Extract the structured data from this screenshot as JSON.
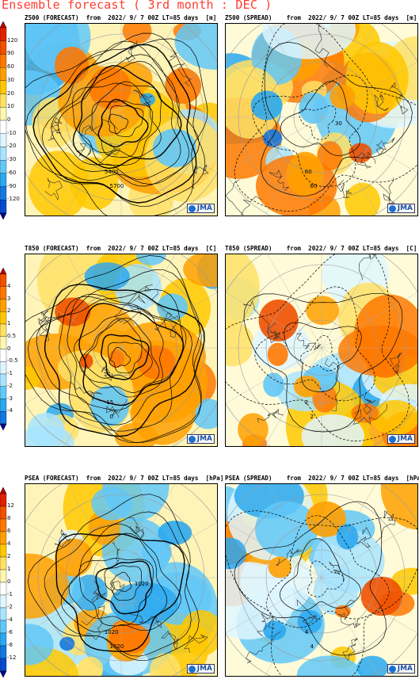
{
  "title": "Ensemble forecast ( 3rd month : DEC )",
  "colorbars": [
    {
      "ticks": [
        "120",
        "90",
        "60",
        "30",
        "20",
        "10",
        "0",
        "-10",
        "-20",
        "-30",
        "-60",
        "-90",
        "-120"
      ]
    },
    {
      "ticks": [
        "4",
        "3",
        "2",
        "1",
        "0.5",
        "0",
        "-0.5",
        "-1",
        "-2",
        "-3",
        "-4"
      ]
    },
    {
      "ticks": [
        "12",
        "8",
        "6",
        "4",
        "2",
        "1",
        "0",
        "-1",
        "-2",
        "-4",
        "-6",
        "-8",
        "-12"
      ]
    }
  ],
  "panels": [
    {
      "title": "Z500 (FORECAST)  from  2022/ 9/ 7 00Z LT=85 days  [m]",
      "labels": [
        "5400",
        "5700"
      ]
    },
    {
      "title": "Z500 (SPREAD)    from  2022/ 9/ 7 00Z LT=85 days  [m]",
      "labels": [
        "60",
        "60",
        "30"
      ]
    },
    {
      "title": "T850 (FORECAST)  from  2022/ 9/ 7 00Z LT=85 days  [C]",
      "labels": [
        "-15",
        "0"
      ]
    },
    {
      "title": "T850 (SPREAD)    from  2022/ 9/ 7 00Z LT=85 days  [C]",
      "labels": [
        "2",
        "2"
      ]
    },
    {
      "title": "PSEA (FORECAST)  from  2022/ 9/ 7 00Z LT=85 days  [hPa]",
      "labels": [
        "1020",
        "1020",
        "1020"
      ]
    },
    {
      "title": "PSEA (SPREAD)    from  2022/ 9/ 7 00Z LT=85 days  [hPa]",
      "labels": [
        "4",
        "4"
      ]
    }
  ],
  "logo_text": "JMA",
  "colors": {
    "pos": [
      "#fff6b0",
      "#ffe066",
      "#ffc800",
      "#ffa000",
      "#ff7800",
      "#f05000",
      "#e02000",
      "#c00000"
    ],
    "neg": [
      "#dff6ff",
      "#a8e4ff",
      "#62c8f8",
      "#2aa8f0",
      "#1478e0",
      "#0a4ad0",
      "#0020b0",
      "#000090"
    ]
  }
}
